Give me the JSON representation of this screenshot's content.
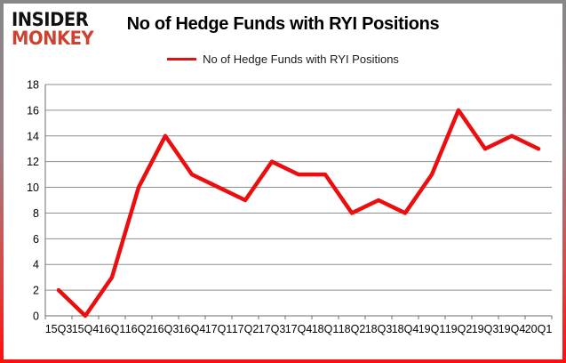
{
  "branding": {
    "line1": "INSIDER",
    "line2": "MONKEY"
  },
  "title": "No of Hedge Funds with RYI Positions",
  "legend": {
    "label": "No of Hedge Funds with RYI Positions"
  },
  "colors": {
    "line": "#ec0e0e",
    "grid": "#8f8f8f",
    "axis": "#6e6e6e",
    "tick_text": "#000000",
    "title_text": "#000000",
    "logo_black": "#111111",
    "logo_red": "#cd4331",
    "border_top": "#878787",
    "border_bottom": "#ff0f0f",
    "background": "#ffffff"
  },
  "chart_data": {
    "type": "line",
    "categories": [
      "15Q3",
      "15Q4",
      "16Q1",
      "16Q2",
      "16Q3",
      "16Q4",
      "17Q1",
      "17Q2",
      "17Q3",
      "17Q4",
      "18Q1",
      "18Q2",
      "18Q3",
      "18Q4",
      "19Q1",
      "19Q2",
      "19Q3",
      "19Q4",
      "20Q1"
    ],
    "series": [
      {
        "name": "No of Hedge Funds with RYI Positions",
        "values": [
          2,
          0,
          3,
          10,
          14,
          11,
          10,
          9,
          12,
          11,
          11,
          8,
          9,
          8,
          11,
          16,
          13,
          14,
          13
        ]
      }
    ],
    "title": "No of Hedge Funds with RYI Positions",
    "xlabel": "",
    "ylabel": "",
    "ylim": [
      0,
      18
    ],
    "ytick_step": 2,
    "grid": true,
    "legend_position": "top"
  }
}
